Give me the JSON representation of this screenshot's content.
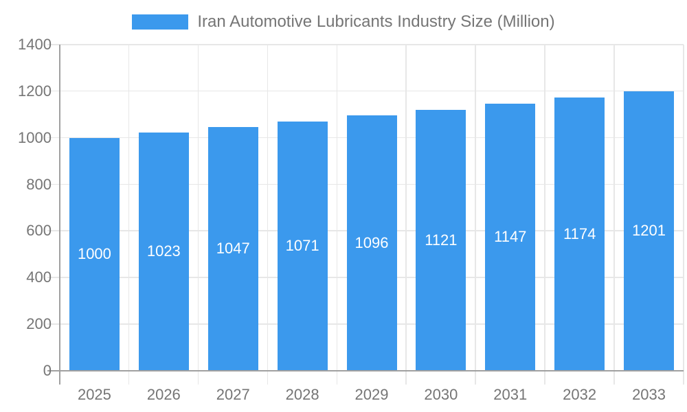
{
  "legend": {
    "label": "Iran Automotive Lubricants Industry Size (Million)"
  },
  "colors": {
    "bar": "#3b99ed",
    "grid": "#e7e7e7",
    "axis": "#a0a0a0",
    "text": "#757575",
    "bar_label": "#ffffff",
    "background": "#ffffff"
  },
  "chart_data": {
    "type": "bar",
    "title": "Iran Automotive Lubricants Industry Size (Million)",
    "categories": [
      "2025",
      "2026",
      "2027",
      "2028",
      "2029",
      "2030",
      "2031",
      "2032",
      "2033"
    ],
    "values": [
      1000,
      1023,
      1047,
      1071,
      1096,
      1121,
      1147,
      1174,
      1201
    ],
    "xlabel": "",
    "ylabel": "",
    "ylim": [
      0,
      1400
    ],
    "ytick_step": 200,
    "yticks": [
      "0",
      "200",
      "400",
      "600",
      "800",
      "1000",
      "1200",
      "1400"
    ],
    "grid": true,
    "legend_position": "top-center",
    "bar_labels": [
      "1000",
      "1023",
      "1047",
      "1071",
      "1096",
      "1121",
      "1147",
      "1174",
      "1201"
    ],
    "bar_label_position": "inside-middle"
  }
}
